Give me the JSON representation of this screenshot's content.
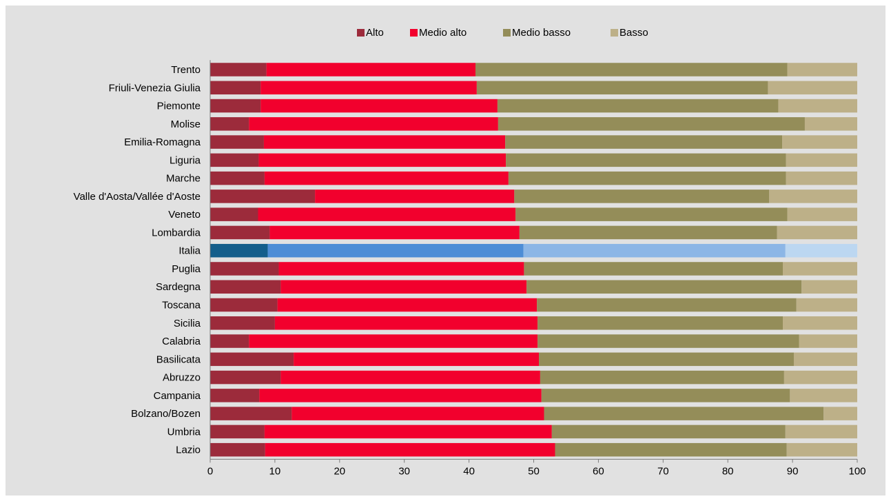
{
  "chart_data": {
    "type": "bar",
    "orientation": "horizontal",
    "stacked": true,
    "title": "",
    "xlabel": "",
    "ylabel": "",
    "xlim": [
      0,
      100
    ],
    "x_ticks": [
      "0",
      "10",
      "20",
      "30",
      "40",
      "50",
      "60",
      "70",
      "80",
      "90",
      "100"
    ],
    "grid": false,
    "legend_position": "top",
    "categories": [
      "Trento",
      "Friuli-Venezia Giulia",
      "Piemonte",
      "Molise",
      "Emilia-Romagna",
      "Liguria",
      "Marche",
      "Valle d'Aosta/Vallée d'Aoste",
      "Veneto",
      "Lombardia",
      "Italia",
      "Puglia",
      "Sardegna",
      "Toscana",
      "Sicilia",
      "Calabria",
      "Basilicata",
      "Abruzzo",
      "Campania",
      "Bolzano/Bozen",
      "Umbria",
      "Lazio"
    ],
    "series": [
      {
        "name": "Alto",
        "color": "#9c2b3b",
        "values": [
          8.7,
          7.8,
          7.8,
          6.0,
          8.3,
          7.5,
          8.4,
          16.2,
          7.4,
          9.2,
          8.9,
          10.6,
          10.9,
          10.4,
          10.0,
          6.0,
          12.9,
          10.9,
          7.6,
          12.6,
          8.4,
          8.5
        ]
      },
      {
        "name": "Medio alto",
        "color": "#f2002d",
        "values": [
          32.3,
          33.4,
          36.6,
          38.5,
          37.3,
          38.2,
          37.7,
          30.8,
          39.8,
          38.6,
          39.5,
          37.9,
          38.0,
          40.1,
          40.6,
          44.6,
          37.9,
          40.1,
          43.6,
          39.0,
          44.4,
          44.8
        ]
      },
      {
        "name": "Medio basso",
        "color": "#948d59",
        "values": [
          48.2,
          45.0,
          43.4,
          47.4,
          42.8,
          43.3,
          42.9,
          39.4,
          42.0,
          39.8,
          40.5,
          40.0,
          42.5,
          40.1,
          37.9,
          40.4,
          39.4,
          37.7,
          38.4,
          43.2,
          36.1,
          35.8
        ]
      },
      {
        "name": "Basso",
        "color": "#bdb088",
        "values": [
          10.8,
          13.8,
          12.2,
          8.1,
          11.6,
          11.0,
          11.0,
          13.6,
          10.8,
          12.4,
          11.1,
          11.5,
          8.6,
          9.4,
          11.5,
          9.0,
          9.8,
          11.3,
          10.4,
          5.2,
          11.1,
          10.9
        ]
      }
    ],
    "highlight": {
      "category": "Italia",
      "colors": [
        "#145e8b",
        "#4d8dd6",
        "#8cb6e6",
        "#bcd7f1"
      ]
    }
  }
}
